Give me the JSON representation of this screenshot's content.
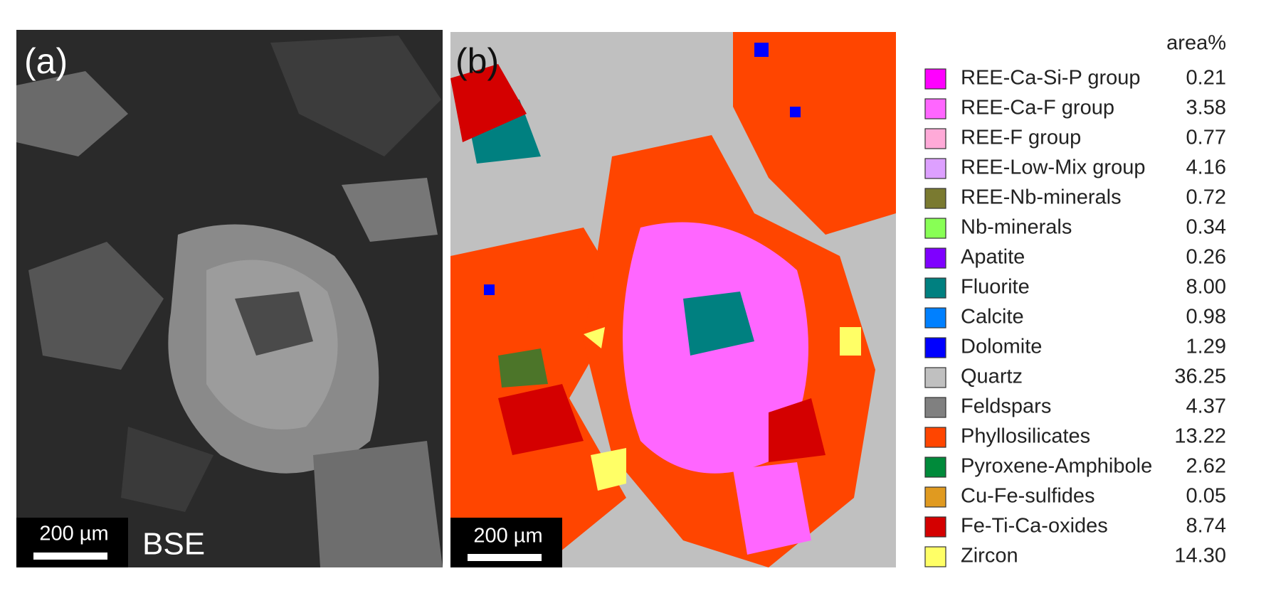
{
  "panels": [
    {
      "label": "(a)",
      "scale_bar": "200 µm",
      "caption": "BSE"
    },
    {
      "label": "(b)",
      "scale_bar": "200 µm"
    }
  ],
  "legend": {
    "header": "area%",
    "items": [
      {
        "name": "REE-Ca-Si-P group",
        "color": "#ff00ff",
        "value": "0.21"
      },
      {
        "name": "REE-Ca-F group",
        "color": "#ff66ff",
        "value": "3.58"
      },
      {
        "name": "REE-F group",
        "color": "#ffaad8",
        "value": "0.77"
      },
      {
        "name": "REE-Low-Mix group",
        "color": "#dda0ff",
        "value": "4.16"
      },
      {
        "name": "REE-Nb-minerals",
        "color": "#7a7a30",
        "value": "0.72"
      },
      {
        "name": "Nb-minerals",
        "color": "#88ff55",
        "value": "0.34"
      },
      {
        "name": "Apatite",
        "color": "#7f00ff",
        "value": "0.26"
      },
      {
        "name": "Fluorite",
        "color": "#008080",
        "value": "8.00"
      },
      {
        "name": "Calcite",
        "color": "#0080ff",
        "value": "0.98"
      },
      {
        "name": "Dolomite",
        "color": "#0000ff",
        "value": "1.29"
      },
      {
        "name": "Quartz",
        "color": "#c0c0c0",
        "value": "36.25"
      },
      {
        "name": "Feldspars",
        "color": "#808080",
        "value": "4.37"
      },
      {
        "name": "Phyllosilicates",
        "color": "#ff4500",
        "value": "13.22"
      },
      {
        "name": "Pyroxene-Amphibole",
        "color": "#008a3a",
        "value": "2.62"
      },
      {
        "name": "Cu-Fe-sulfides",
        "color": "#e09a20",
        "value": "0.05"
      },
      {
        "name": "Fe-Ti-Ca-oxides",
        "color": "#d40000",
        "value": "8.74"
      },
      {
        "name": "Zircon",
        "color": "#ffff66",
        "value": "14.30"
      }
    ]
  }
}
